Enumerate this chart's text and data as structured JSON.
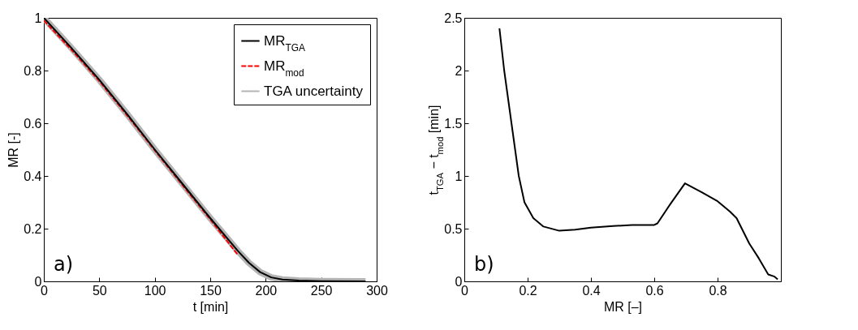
{
  "chart_data": [
    {
      "type": "line",
      "xlabel": "t [min]",
      "ylabel": "MR [-]",
      "annotations": [
        "a)"
      ],
      "xlim": [
        0,
        300
      ],
      "ylim": [
        0,
        1
      ],
      "xticks": [
        0,
        50,
        100,
        150,
        200,
        250,
        300
      ],
      "yticks": [
        0,
        0.2,
        0.4,
        0.6,
        0.8,
        1
      ],
      "legend": "top right",
      "x": [
        0,
        25,
        50,
        75,
        100,
        125,
        150,
        165,
        175,
        185,
        195,
        205,
        215,
        230,
        250,
        290
      ],
      "series": [
        {
          "name": "MR$_{TGA}$",
          "color": "#000000",
          "line_style": "solid",
          "values": [
            1,
            0.885,
            0.765,
            0.635,
            0.5,
            0.37,
            0.24,
            0.165,
            0.115,
            0.07,
            0.035,
            0.015,
            0.007,
            0.003,
            0.001,
            0
          ]
        },
        {
          "name": "MR$_{mod}$",
          "color": "#ff0000",
          "line_style": "dashed",
          "x": [
            0,
            25,
            50,
            75,
            100,
            125,
            150,
            175
          ],
          "values": [
            0.99,
            0.878,
            0.76,
            0.63,
            0.497,
            0.365,
            0.235,
            0.1
          ]
        },
        {
          "name": "TGA uncertainty",
          "color": "#b4b4b4",
          "line_style": "solid",
          "values": [
            1,
            0.885,
            0.765,
            0.635,
            0.5,
            0.37,
            0.24,
            0.165,
            0.115,
            0.07,
            0.035,
            0.015,
            0.007,
            0.003,
            0.001,
            0
          ]
        }
      ]
    },
    {
      "type": "line",
      "xlabel": "MR [–]",
      "ylabel": "t$_{TGA}$ − t$_{mod}$ [min]",
      "annotations": [
        "b)"
      ],
      "xlim": [
        0,
        1
      ],
      "ylim": [
        0,
        2.5
      ],
      "xticks": [
        0,
        0.2,
        0.4,
        0.6,
        0.8
      ],
      "yticks": [
        0,
        0.5,
        1,
        1.5,
        2,
        2.5
      ],
      "x": [
        0.111,
        0.126,
        0.149,
        0.172,
        0.19,
        0.218,
        0.25,
        0.3,
        0.35,
        0.4,
        0.47,
        0.53,
        0.6,
        0.61,
        0.65,
        0.697,
        0.75,
        0.8,
        0.84,
        0.86,
        0.9,
        0.93,
        0.96,
        0.98,
        0.99
      ],
      "series": [
        {
          "color": "#000000",
          "line_style": "solid",
          "values": [
            2.4,
            2.0,
            1.5,
            1.0,
            0.75,
            0.6,
            0.52,
            0.48,
            0.49,
            0.51,
            0.525,
            0.535,
            0.535,
            0.55,
            0.73,
            0.93,
            0.845,
            0.76,
            0.66,
            0.6,
            0.36,
            0.22,
            0.065,
            0.045,
            0.02
          ]
        }
      ]
    }
  ]
}
